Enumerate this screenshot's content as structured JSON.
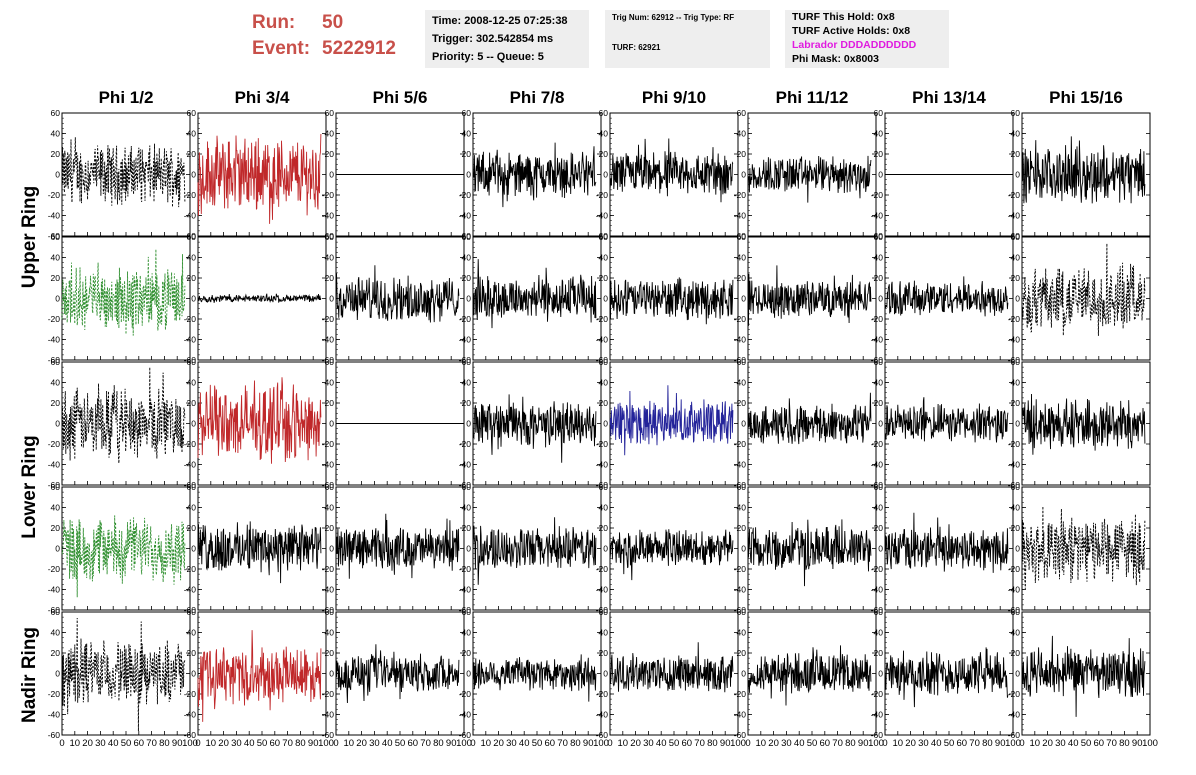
{
  "header": {
    "run_label": "Run:",
    "run_value": "50",
    "event_label": "Event:",
    "event_value": "5222912"
  },
  "info_time": {
    "time": "Time: 2008-12-25 07:25:38",
    "trigger": "Trigger: 302.542854 ms",
    "priority": "Priority: 5 -- Queue: 5"
  },
  "info_trig": {
    "trig": "Trig Num: 62912 -- Trig Type: RF",
    "turf": "TURF: 62921"
  },
  "info_turf": {
    "this_hold": "TURF This Hold: 0x8",
    "active_holds": "TURF Active Holds: 0x8",
    "labrador": "Labrador DDDADDDDDD",
    "phi_mask": "Phi Mask: 0x8003"
  },
  "columns": [
    "Phi 1/2",
    "Phi 3/4",
    "Phi 5/6",
    "Phi 7/8",
    "Phi 9/10",
    "Phi 11/12",
    "Phi 13/14",
    "Phi 15/16"
  ],
  "rings": [
    "Upper Ring",
    "Lower Ring",
    "Nadir Ring"
  ],
  "colors": {
    "black": "#000000",
    "red": "#c0282a",
    "green": "#2f8f2f",
    "blue": "#24249a",
    "accent": "#c8504a",
    "magenta": "#e01ce0",
    "panel_bg": "#eeeeee"
  },
  "chart_data": {
    "type": "line",
    "description_rows": 5,
    "description_cols": 8,
    "xlim": [
      0,
      100
    ],
    "ylim": [
      -60,
      60
    ],
    "y_ticks": [
      -60,
      -40,
      -20,
      0,
      20,
      40,
      60
    ],
    "y_tick_labels": [
      "-60",
      "-40",
      "-20",
      "0",
      "20",
      "40",
      "60"
    ],
    "x_ticks": [
      0,
      10,
      20,
      30,
      40,
      50,
      60,
      70,
      80,
      90,
      100
    ],
    "x_tick_labels": [
      "0",
      "10",
      "20",
      "30",
      "40",
      "50",
      "60",
      "70",
      "80",
      "90",
      "100"
    ],
    "panels": [
      [
        {
          "style": "dashed",
          "color": "black",
          "amp": 24
        },
        {
          "style": "solid",
          "color": "red",
          "amp": 30
        },
        {
          "style": "flat",
          "color": "black",
          "amp": 0
        },
        {
          "style": "solid",
          "color": "black",
          "amp": 18
        },
        {
          "style": "solid",
          "color": "black",
          "amp": 18
        },
        {
          "style": "solid",
          "color": "black",
          "amp": 15
        },
        {
          "style": "flat",
          "color": "black",
          "amp": 0
        },
        {
          "style": "solid",
          "color": "black",
          "amp": 22
        }
      ],
      [
        {
          "style": "dashed",
          "color": "green",
          "amp": 24
        },
        {
          "style": "solid",
          "color": "black",
          "amp": 3
        },
        {
          "style": "solid",
          "color": "black",
          "amp": 18
        },
        {
          "style": "solid",
          "color": "black",
          "amp": 18
        },
        {
          "style": "solid",
          "color": "black",
          "amp": 16
        },
        {
          "style": "solid",
          "color": "black",
          "amp": 15
        },
        {
          "style": "solid",
          "color": "black",
          "amp": 14
        },
        {
          "style": "dashed",
          "color": "black",
          "amp": 26
        }
      ],
      [
        {
          "style": "dashed",
          "color": "black",
          "amp": 28
        },
        {
          "style": "solid",
          "color": "red",
          "amp": 30
        },
        {
          "style": "flat",
          "color": "black",
          "amp": 0
        },
        {
          "style": "solid",
          "color": "black",
          "amp": 18
        },
        {
          "style": "solid",
          "color": "blue",
          "amp": 18
        },
        {
          "style": "solid",
          "color": "black",
          "amp": 16
        },
        {
          "style": "solid",
          "color": "black",
          "amp": 15
        },
        {
          "style": "solid",
          "color": "black",
          "amp": 20
        }
      ],
      [
        {
          "style": "dashed",
          "color": "green",
          "amp": 26
        },
        {
          "style": "solid",
          "color": "black",
          "amp": 20
        },
        {
          "style": "solid",
          "color": "black",
          "amp": 17
        },
        {
          "style": "solid",
          "color": "black",
          "amp": 17
        },
        {
          "style": "solid",
          "color": "black",
          "amp": 15
        },
        {
          "style": "solid",
          "color": "black",
          "amp": 18
        },
        {
          "style": "solid",
          "color": "black",
          "amp": 17
        },
        {
          "style": "dashed",
          "color": "black",
          "amp": 26
        }
      ],
      [
        {
          "style": "dashed",
          "color": "black",
          "amp": 26
        },
        {
          "style": "solid",
          "color": "red",
          "amp": 22
        },
        {
          "style": "solid",
          "color": "black",
          "amp": 15
        },
        {
          "style": "solid",
          "color": "black",
          "amp": 14
        },
        {
          "style": "solid",
          "color": "black",
          "amp": 15
        },
        {
          "style": "solid",
          "color": "black",
          "amp": 16
        },
        {
          "style": "solid",
          "color": "black",
          "amp": 17
        },
        {
          "style": "solid",
          "color": "black",
          "amp": 20
        }
      ]
    ]
  }
}
